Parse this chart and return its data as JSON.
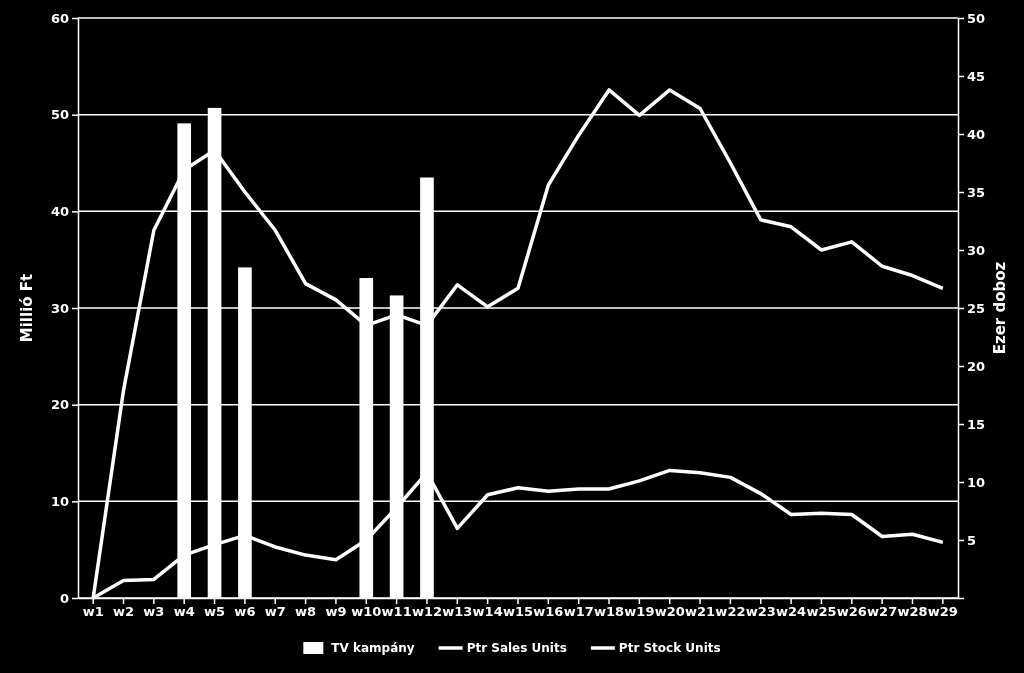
{
  "chart_data": {
    "type": "bar",
    "ylabel": "Millió Ft",
    "y2label": "Ezer doboz",
    "categories": [
      "w1",
      "w2",
      "w3",
      "w4",
      "w5",
      "w6",
      "w7",
      "w8",
      "w9",
      "w10",
      "w11",
      "w12",
      "w13",
      "w14",
      "w15",
      "w16",
      "w17",
      "w18",
      "w19",
      "w20",
      "w21",
      "w22",
      "w23",
      "w24",
      "w25",
      "w26",
      "w27",
      "w28",
      "w29"
    ],
    "series": [
      {
        "name": "TV kampány",
        "color": "#ffffff",
        "values": [
          null,
          null,
          null,
          49.1,
          50.7,
          34.2,
          null,
          null,
          null,
          33.1,
          31.3,
          43.5,
          null,
          null,
          null,
          null,
          null,
          null,
          null,
          null,
          null,
          null,
          null,
          null,
          null,
          null,
          null,
          null,
          null
        ]
      },
      {
        "name": "Ptr Sales Units",
        "type": "line",
        "axis": "y2",
        "color": "#ffffff",
        "values": [
          0,
          1.5,
          1.6,
          3.7,
          4.6,
          5.4,
          4.4,
          3.7,
          3.3,
          5.0,
          7.8,
          10.8,
          6.0,
          8.9,
          9.5,
          9.2,
          9.4,
          9.4,
          10.1,
          11.0,
          10.8,
          10.4,
          9.0,
          7.2,
          7.3,
          7.2,
          5.3,
          5.5,
          4.8
        ]
      },
      {
        "name": "Ptr Stock Units",
        "type": "line",
        "axis": "y2",
        "color": "#ffffff",
        "values": [
          0,
          17.9,
          31.7,
          36.9,
          38.6,
          35.0,
          31.7,
          27.1,
          25.7,
          23.5,
          24.4,
          23.5,
          27.0,
          25.1,
          26.7,
          35.6,
          39.9,
          43.8,
          41.6,
          43.8,
          42.2,
          37.5,
          32.6,
          32.0,
          30.0,
          30.7,
          28.6,
          27.8,
          26.7
        ]
      }
    ],
    "ylim": [
      0,
      60
    ],
    "yticks": [
      0,
      10,
      20,
      30,
      40,
      50,
      60
    ],
    "y2lim": [
      0,
      50
    ],
    "y2ticks": [
      {
        "value": 0,
        "label": null
      },
      5,
      10,
      15,
      20,
      25,
      30,
      35,
      40,
      45,
      50
    ],
    "grid": "y",
    "legend": "bottom",
    "marker": "none",
    "line_style": "solid"
  }
}
